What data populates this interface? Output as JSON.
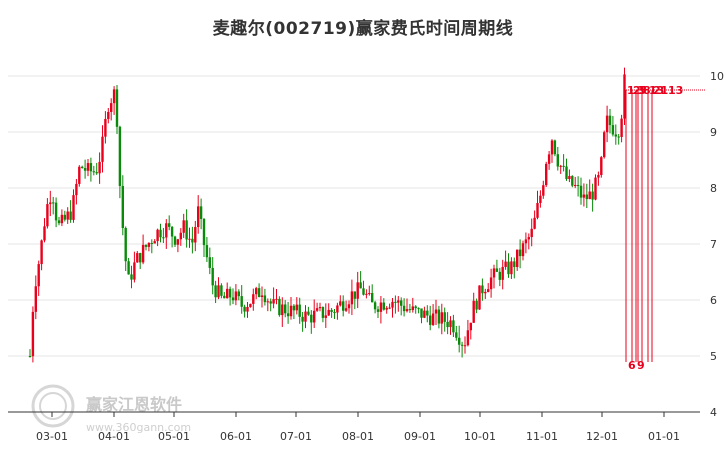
{
  "chart_data": {
    "type": "candlestick",
    "title": "麦趣尔(002719)赢家费氏时间周期线",
    "ylim": [
      4,
      10.5
    ],
    "y_ticks": [
      4,
      5,
      6,
      7,
      8,
      9,
      10
    ],
    "x_ticks": [
      "03-01",
      "04-01",
      "05-01",
      "06-01",
      "07-01",
      "08-01",
      "09-01",
      "10-01",
      "11-01",
      "12-01",
      "01-01"
    ],
    "x_tick_days": [
      0,
      31,
      61,
      92,
      122,
      153,
      184,
      214,
      245,
      275,
      306
    ],
    "price_path": [
      [
        -11,
        5.0
      ],
      [
        -9,
        6.2
      ],
      [
        -6,
        6.8
      ],
      [
        -3,
        7.6
      ],
      [
        0,
        8.0
      ],
      [
        3,
        7.3
      ],
      [
        6,
        7.4
      ],
      [
        10,
        7.6
      ],
      [
        14,
        8.4
      ],
      [
        18,
        8.3
      ],
      [
        22,
        8.3
      ],
      [
        25,
        8.7
      ],
      [
        28,
        9.5
      ],
      [
        31,
        9.7
      ],
      [
        33,
        9.1
      ],
      [
        34,
        8.0
      ],
      [
        36,
        7.0
      ],
      [
        38,
        6.3
      ],
      [
        42,
        6.7
      ],
      [
        48,
        7.0
      ],
      [
        52,
        7.2
      ],
      [
        57,
        7.3
      ],
      [
        62,
        7.1
      ],
      [
        66,
        7.3
      ],
      [
        70,
        7.0
      ],
      [
        73,
        7.6
      ],
      [
        76,
        7.0
      ],
      [
        80,
        6.3
      ],
      [
        85,
        6.0
      ],
      [
        90,
        6.1
      ],
      [
        95,
        5.9
      ],
      [
        100,
        6.0
      ],
      [
        105,
        6.2
      ],
      [
        110,
        5.9
      ],
      [
        120,
        5.8
      ],
      [
        128,
        5.7
      ],
      [
        140,
        5.8
      ],
      [
        150,
        6.1
      ],
      [
        155,
        6.2
      ],
      [
        160,
        5.9
      ],
      [
        170,
        6.0
      ],
      [
        180,
        5.8
      ],
      [
        190,
        5.7
      ],
      [
        200,
        5.6
      ],
      [
        206,
        5.2
      ],
      [
        210,
        5.8
      ],
      [
        215,
        6.2
      ],
      [
        220,
        6.4
      ],
      [
        225,
        6.5
      ],
      [
        230,
        6.6
      ],
      [
        235,
        6.9
      ],
      [
        240,
        7.2
      ],
      [
        245,
        8.0
      ],
      [
        247,
        8.5
      ],
      [
        250,
        8.9
      ],
      [
        253,
        8.5
      ],
      [
        258,
        8.1
      ],
      [
        262,
        8.0
      ],
      [
        266,
        7.8
      ],
      [
        270,
        7.9
      ],
      [
        274,
        8.2
      ],
      [
        277,
        9.2
      ],
      [
        280,
        9.1
      ],
      [
        283,
        9.0
      ],
      [
        285,
        9.4
      ],
      [
        287,
        10.2
      ]
    ],
    "fib_lines": [
      {
        "date_day": 287,
        "label": "1"
      },
      {
        "date_day": 290,
        "label": "2"
      },
      {
        "date_day": 292,
        "label": "3"
      },
      {
        "date_day": 293,
        "label": "5"
      },
      {
        "date_day": 295,
        "label": "8"
      },
      {
        "date_day": 298,
        "label": "13"
      },
      {
        "date_day": 300,
        "label": "21"
      }
    ],
    "bottom_labels": [
      "6",
      "9"
    ],
    "top_label": "13"
  },
  "watermark": {
    "text": "赢家江恩软件",
    "url": "www.360gann.com"
  },
  "colors": {
    "up": "#e8001c",
    "down": "#0a8a0a",
    "fib_line": "#e8001c",
    "grid": "#e6e6e6",
    "axis": "#333333"
  }
}
